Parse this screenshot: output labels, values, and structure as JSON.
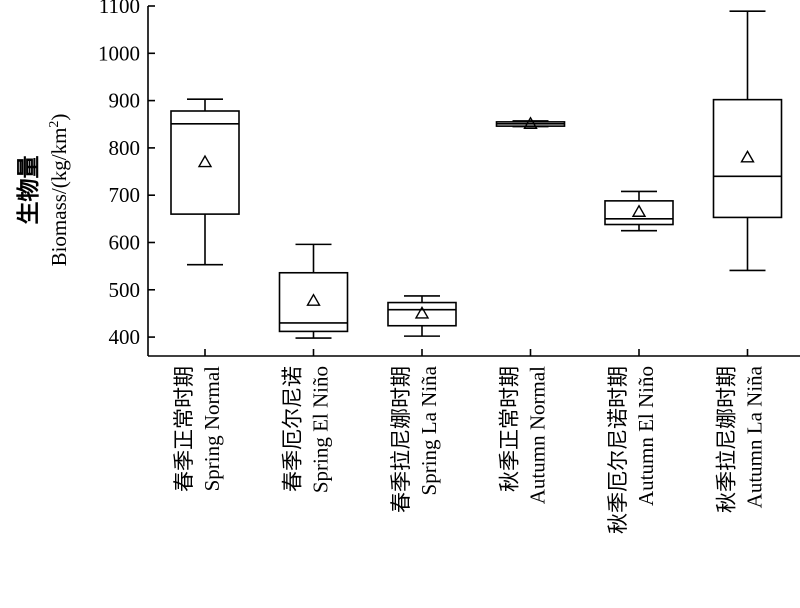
{
  "chart_data": {
    "type": "box",
    "ylabel_cn": "生物量",
    "ylabel": "Biomass/(kg/km",
    "ylabel_sup": "2",
    "ylabel_tail": ")",
    "ylim": [
      360,
      1100
    ],
    "yticks": [
      400,
      500,
      600,
      700,
      800,
      900,
      1000,
      1100
    ],
    "grid": false,
    "categories": [
      {
        "cn": "春季正常时期",
        "en": "Spring Normal"
      },
      {
        "cn": "春季厄尔尼诺",
        "en": "Spring  El Niño"
      },
      {
        "cn": "春季拉尼娜时期",
        "en": "Spring La Niña"
      },
      {
        "cn": "秋季正常时期",
        "en": "Autumn Normal"
      },
      {
        "cn": "秋季厄尔尼诺时期",
        "en": "Autumn El Niño"
      },
      {
        "cn": "秋季拉尼娜时期",
        "en": "Autumn La Niña"
      }
    ],
    "boxes": [
      {
        "min": 553,
        "q1": 660,
        "median": 851,
        "q3": 878,
        "max": 903,
        "mean": 770
      },
      {
        "min": 398,
        "q1": 412,
        "median": 430,
        "q3": 536,
        "max": 596,
        "mean": 477
      },
      {
        "min": 402,
        "q1": 424,
        "median": 458,
        "q3": 473,
        "max": 487,
        "mean": 450
      },
      {
        "min": 845,
        "q1": 846,
        "median": 851,
        "q3": 855,
        "max": 857,
        "mean": 851
      },
      {
        "min": 625,
        "q1": 638,
        "median": 650,
        "q3": 688,
        "max": 708,
        "mean": 665
      },
      {
        "min": 541,
        "q1": 653,
        "median": 740,
        "q3": 902,
        "max": 1089,
        "mean": 780
      }
    ]
  }
}
